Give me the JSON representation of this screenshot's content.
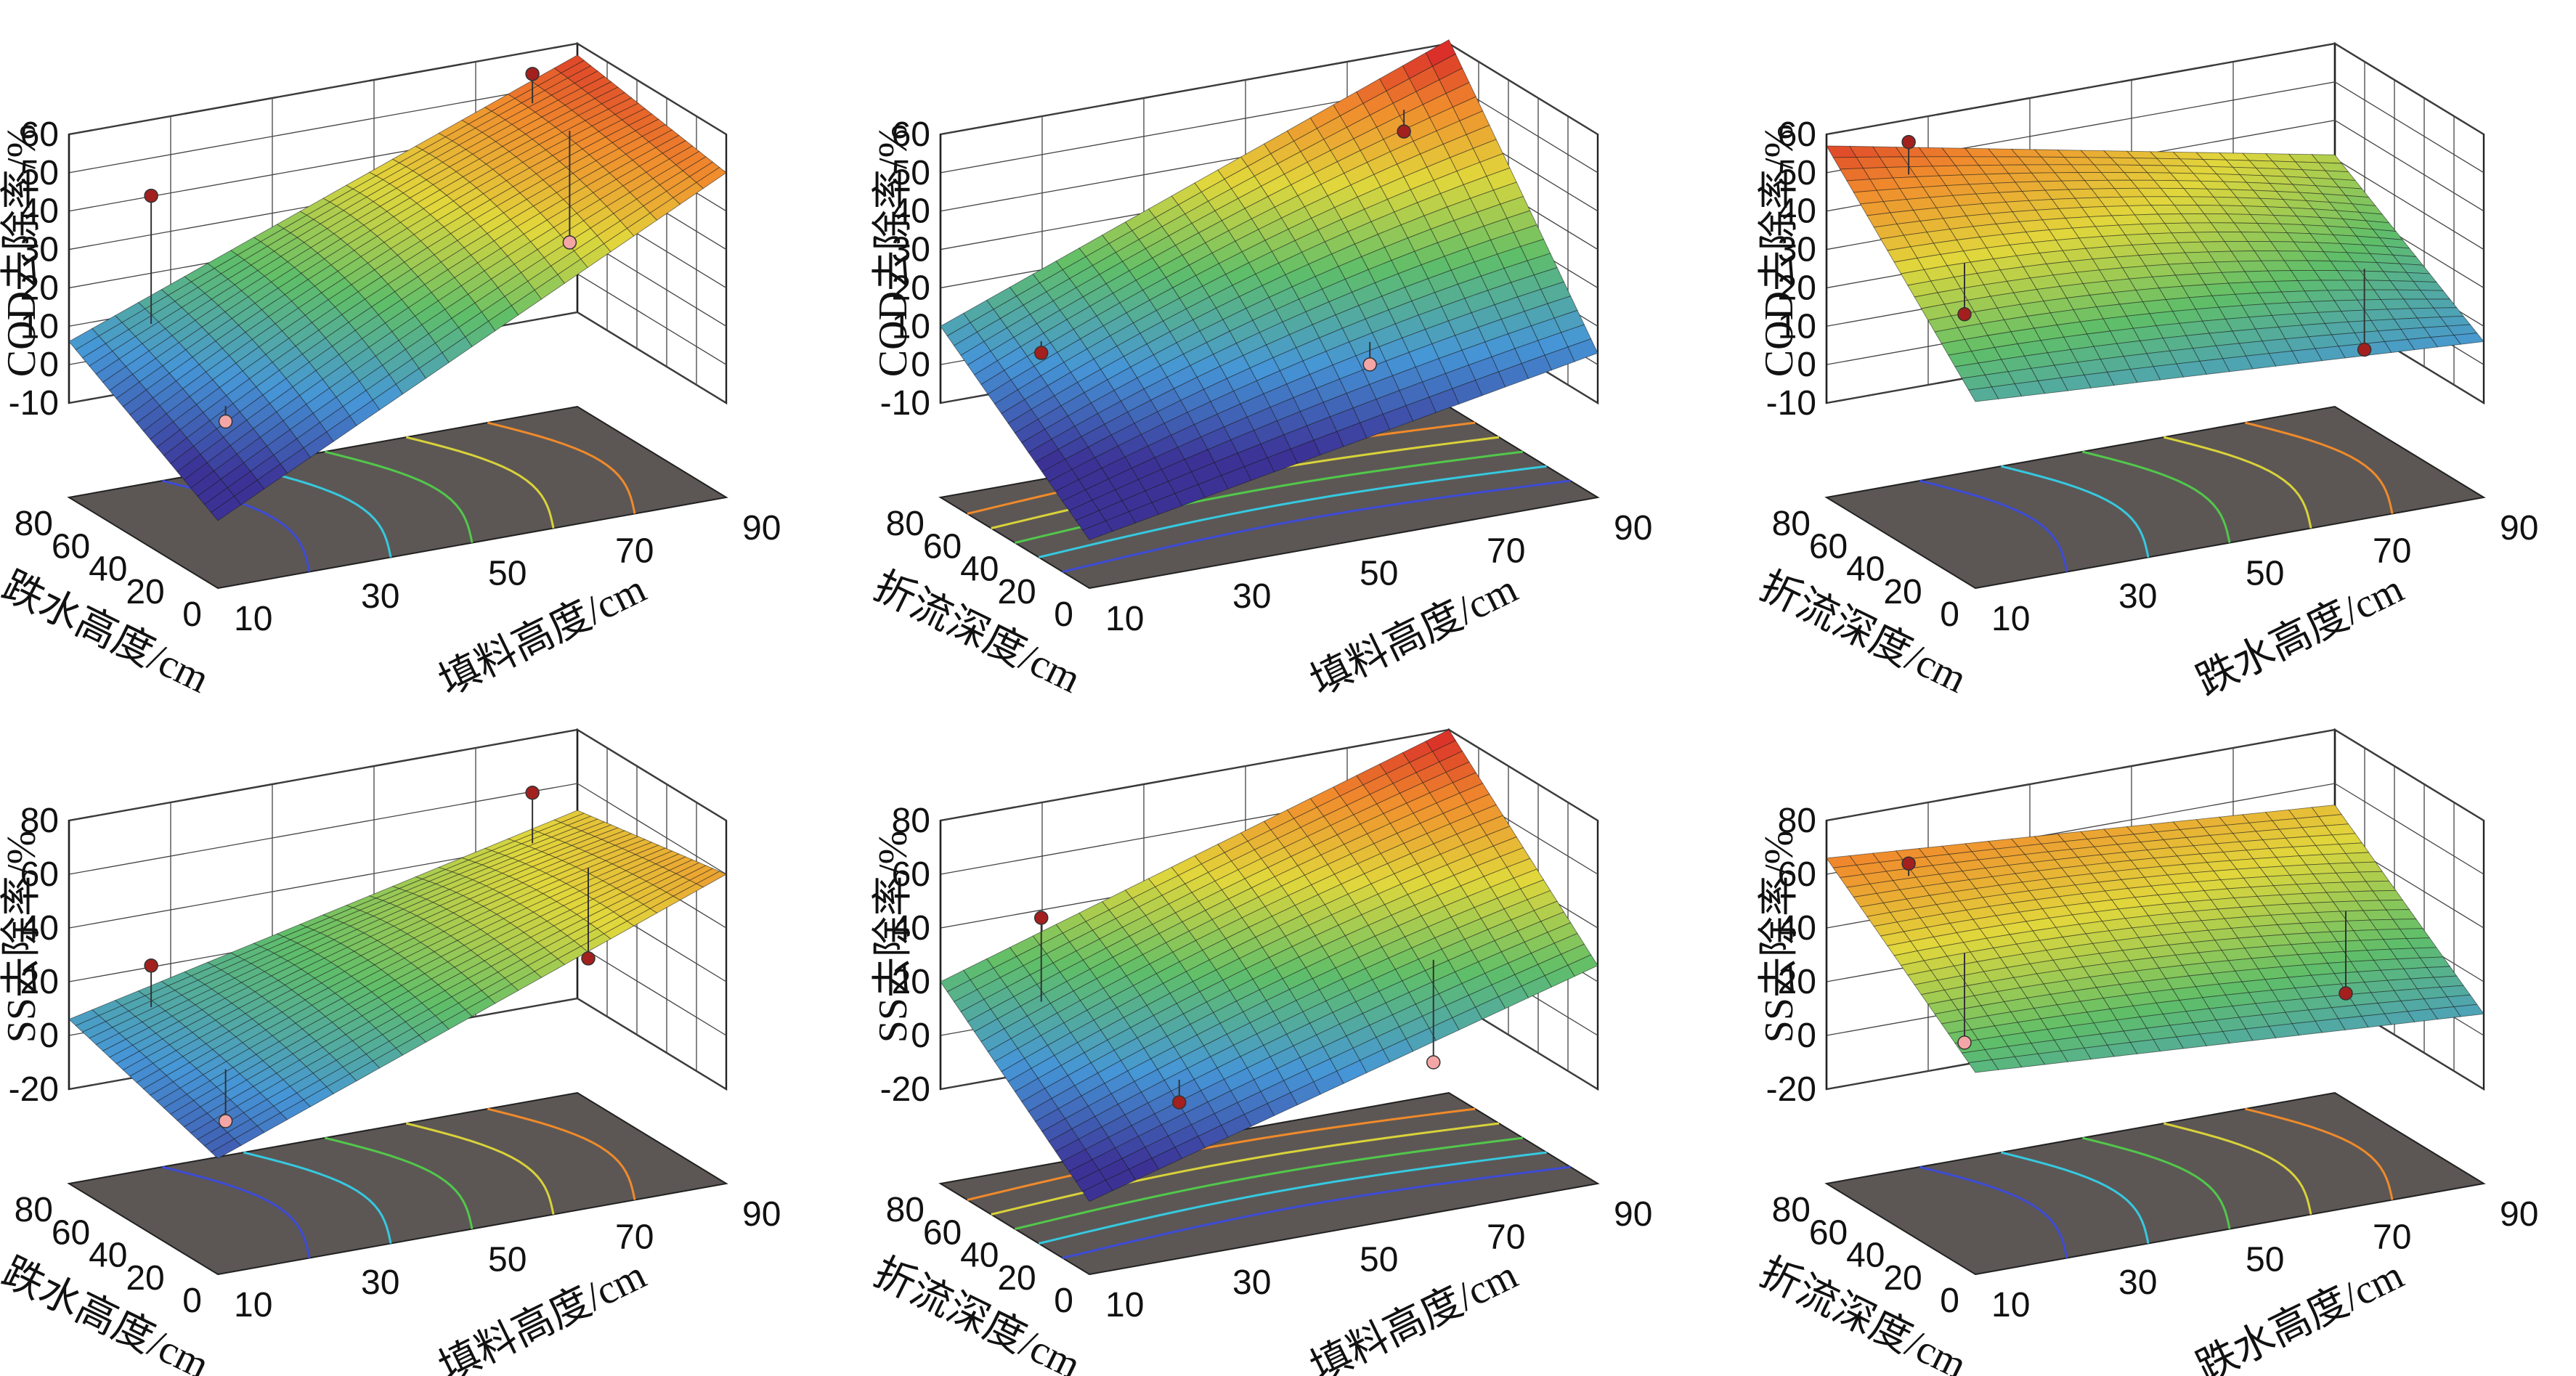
{
  "chart_data": [
    {
      "type": "surface",
      "z_label": "COD去除率/%",
      "x_label": "填料高度/cm",
      "y_label": "跌水高度/cm",
      "z_ticks": [
        "60",
        "50",
        "40",
        "30",
        "20",
        "10",
        "0",
        "-10"
      ],
      "x_ticks": [
        "10",
        "30",
        "50",
        "70",
        "90"
      ],
      "y_ticks": [
        "0",
        "20",
        "40",
        "60",
        "80"
      ],
      "zlim": [
        -10,
        60
      ],
      "corners": {
        "x_min_y_max": 6,
        "x_max_y_max": 57,
        "x_max_y_min": 50,
        "x_min_y_min": -17
      },
      "design_points": [
        [
          20,
          70,
          44,
          "above"
        ],
        [
          80,
          70,
          58,
          "above"
        ],
        [
          80,
          50,
          20,
          "below"
        ],
        [
          20,
          30,
          -3,
          "below"
        ]
      ]
    },
    {
      "type": "surface",
      "z_label": "COD去除率/%",
      "x_label": "填料高度/cm",
      "y_label": "折流深度/cm",
      "z_ticks": [
        "60",
        "50",
        "40",
        "30",
        "20",
        "10",
        "0",
        "-10"
      ],
      "x_ticks": [
        "10",
        "30",
        "50",
        "70",
        "90"
      ],
      "y_ticks": [
        "0",
        "20",
        "40",
        "60",
        "80"
      ],
      "zlim": [
        -10,
        60
      ],
      "corners": {
        "x_min_y_max": 10,
        "x_max_y_max": 61,
        "x_max_y_min": 3,
        "x_min_y_min": -22
      },
      "design_points": [
        [
          20,
          60,
          6,
          "above"
        ],
        [
          80,
          70,
          43,
          "above"
        ],
        [
          60,
          20,
          3,
          "below"
        ]
      ]
    },
    {
      "type": "surface",
      "z_label": "COD去除率/%",
      "x_label": "跌水高度/cm",
      "y_label": "折流深度/cm",
      "z_ticks": [
        "60",
        "50",
        "40",
        "30",
        "20",
        "10",
        "0",
        "-10"
      ],
      "x_ticks": [
        "10",
        "30",
        "50",
        "70",
        "90"
      ],
      "y_ticks": [
        "0",
        "20",
        "40",
        "60",
        "80"
      ],
      "zlim": [
        -10,
        60
      ],
      "corners": {
        "x_min_y_max": 57,
        "x_max_y_max": 31,
        "x_max_y_min": 6,
        "x_min_y_min": 14
      },
      "design_points": [
        [
          20,
          70,
          58,
          "above"
        ],
        [
          20,
          40,
          22,
          "above"
        ],
        [
          80,
          30,
          -2,
          "above"
        ]
      ]
    },
    {
      "type": "surface",
      "z_label": "SS去除率/%",
      "x_label": "填料高度/cm",
      "y_label": "跌水高度/cm",
      "z_ticks": [
        "80",
        "60",
        "40",
        "20",
        "0",
        "-20"
      ],
      "x_ticks": [
        "10",
        "30",
        "50",
        "70",
        "90"
      ],
      "y_ticks": [
        "0",
        "20",
        "40",
        "60",
        "80"
      ],
      "zlim": [
        -20,
        80
      ],
      "corners": {
        "x_min_y_max": 6,
        "x_max_y_max": 50,
        "x_max_y_min": 60,
        "x_min_y_min": -12
      },
      "design_points": [
        [
          20,
          70,
          26,
          "above"
        ],
        [
          80,
          70,
          65,
          "above"
        ],
        [
          80,
          40,
          16,
          "above"
        ],
        [
          20,
          30,
          -15,
          "below"
        ]
      ]
    },
    {
      "type": "surface",
      "z_label": "SS去除率/%",
      "x_label": "填料高度/cm",
      "y_label": "折流深度/cm",
      "z_ticks": [
        "80",
        "60",
        "40",
        "20",
        "0",
        "-20"
      ],
      "x_ticks": [
        "10",
        "30",
        "50",
        "70",
        "90"
      ],
      "y_ticks": [
        "0",
        "20",
        "40",
        "60",
        "80"
      ],
      "zlim": [
        -20,
        80
      ],
      "corners": {
        "x_min_y_max": 20,
        "x_max_y_max": 80,
        "x_max_y_min": 26,
        "x_min_y_min": -28
      },
      "design_points": [
        [
          20,
          60,
          48,
          "above"
        ],
        [
          30,
          20,
          -8,
          "above"
        ],
        [
          70,
          20,
          -10,
          "below"
        ]
      ]
    },
    {
      "type": "surface",
      "z_label": "SS去除率/%",
      "x_label": "跌水高度/cm",
      "y_label": "折流深度/cm",
      "z_ticks": [
        "80",
        "60",
        "40",
        "20",
        "0",
        "-20"
      ],
      "x_ticks": [
        "10",
        "30",
        "50",
        "70",
        "90"
      ],
      "y_ticks": [
        "0",
        "20",
        "40",
        "60",
        "80"
      ],
      "zlim": [
        -20,
        80
      ],
      "corners": {
        "x_min_y_max": 66,
        "x_max_y_max": 52,
        "x_max_y_min": 8,
        "x_min_y_min": 20
      },
      "design_points": [
        [
          20,
          70,
          64,
          "above"
        ],
        [
          20,
          40,
          10,
          "below"
        ],
        [
          80,
          40,
          3,
          "above"
        ]
      ]
    }
  ]
}
